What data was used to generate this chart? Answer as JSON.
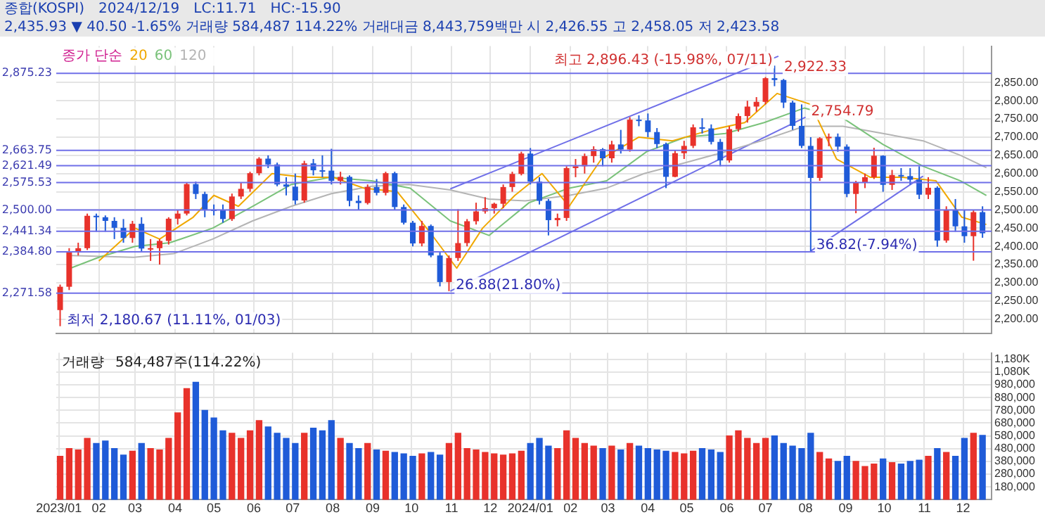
{
  "chart_data": [
    {
      "type": "candlestick",
      "title": "종합(KOSPI)",
      "subtitle": "2,435.93 ▼ 40.50 -1.65% 거래량 584,487 114.22% 거래대금 8,443,759백만 시 2,426.55 고 2,458.05 저 2,423.58",
      "annotations": [
        "2024/12/19",
        "LC:11.71",
        "HC:-15.90",
        {
          "text": "최고 2,896.43 (-15.98%, 07/11)",
          "x": "2024-07-11",
          "y": 2896.43
        },
        {
          "text": "최저 2,180.67 (11.11%, 01/03)",
          "x": "2023-01-03",
          "y": 2180.67
        },
        {
          "text": "26.88(21.80%)",
          "x": "2023-10-31",
          "y": 2277
        },
        {
          "text": "36.82(-7.94%)",
          "x": "2024-08-05",
          "y": 2386.96
        },
        {
          "text": "2,754.79",
          "x": "2024-08-01",
          "y": 2754.79
        },
        {
          "text": "2,922.33",
          "x": "2024-07-11",
          "y": 2922.33
        }
      ],
      "x": [
        "2023-01-02",
        "2023-01-09",
        "2023-01-16",
        "2023-01-23",
        "2023-01-30",
        "2023-02-06",
        "2023-02-13",
        "2023-02-20",
        "2023-02-27",
        "2023-03-06",
        "2023-03-13",
        "2023-03-20",
        "2023-03-27",
        "2023-04-03",
        "2023-04-10",
        "2023-04-17",
        "2023-04-24",
        "2023-05-01",
        "2023-05-08",
        "2023-05-15",
        "2023-05-22",
        "2023-05-29",
        "2023-06-05",
        "2023-06-12",
        "2023-06-19",
        "2023-06-26",
        "2023-07-03",
        "2023-07-10",
        "2023-07-17",
        "2023-07-24",
        "2023-07-31",
        "2023-08-07",
        "2023-08-14",
        "2023-08-21",
        "2023-08-28",
        "2023-09-04",
        "2023-09-11",
        "2023-09-18",
        "2023-09-25",
        "2023-10-02",
        "2023-10-09",
        "2023-10-16",
        "2023-10-23",
        "2023-10-30",
        "2023-11-06",
        "2023-11-13",
        "2023-11-20",
        "2023-11-27",
        "2023-12-04",
        "2023-12-11",
        "2023-12-18",
        "2023-12-25",
        "2024-01-01",
        "2024-01-08",
        "2024-01-15",
        "2024-01-22",
        "2024-01-29",
        "2024-02-05",
        "2024-02-12",
        "2024-02-19",
        "2024-02-26",
        "2024-03-04",
        "2024-03-11",
        "2024-03-18",
        "2024-03-25",
        "2024-04-01",
        "2024-04-08",
        "2024-04-15",
        "2024-04-22",
        "2024-04-29",
        "2024-05-06",
        "2024-05-13",
        "2024-05-20",
        "2024-05-27",
        "2024-06-03",
        "2024-06-10",
        "2024-06-17",
        "2024-06-24",
        "2024-07-01",
        "2024-07-08",
        "2024-07-15",
        "2024-07-22",
        "2024-07-29",
        "2024-08-05",
        "2024-08-12",
        "2024-08-19",
        "2024-08-26",
        "2024-09-02",
        "2024-09-09",
        "2024-09-16",
        "2024-09-23",
        "2024-09-30",
        "2024-10-07",
        "2024-10-14",
        "2024-10-21",
        "2024-10-28",
        "2024-11-04",
        "2024-11-11",
        "2024-11-18",
        "2024-11-25",
        "2024-12-02",
        "2024-12-09",
        "2024-12-16"
      ],
      "ohlc": [
        [
          2225,
          2295,
          2180.67,
          2289
        ],
        [
          2289,
          2395,
          2280,
          2386
        ],
        [
          2386,
          2410,
          2375,
          2395
        ],
        [
          2395,
          2490,
          2390,
          2484
        ],
        [
          2484,
          2490,
          2440,
          2480
        ],
        [
          2480,
          2485,
          2440,
          2470
        ],
        [
          2470,
          2480,
          2420,
          2451
        ],
        [
          2451,
          2475,
          2410,
          2423
        ],
        [
          2423,
          2470,
          2410,
          2462
        ],
        [
          2462,
          2480,
          2385,
          2394
        ],
        [
          2394,
          2420,
          2360,
          2395
        ],
        [
          2395,
          2420,
          2350,
          2415
        ],
        [
          2415,
          2480,
          2405,
          2476
        ],
        [
          2476,
          2500,
          2460,
          2490
        ],
        [
          2490,
          2575,
          2485,
          2571
        ],
        [
          2571,
          2578,
          2530,
          2544
        ],
        [
          2544,
          2550,
          2480,
          2501
        ],
        [
          2501,
          2515,
          2485,
          2500
        ],
        [
          2500,
          2515,
          2465,
          2475
        ],
        [
          2475,
          2545,
          2470,
          2537
        ],
        [
          2537,
          2575,
          2530,
          2558
        ],
        [
          2558,
          2605,
          2550,
          2601
        ],
        [
          2601,
          2645,
          2595,
          2641
        ],
        [
          2641,
          2650,
          2615,
          2625
        ],
        [
          2625,
          2630,
          2565,
          2570
        ],
        [
          2570,
          2590,
          2540,
          2564
        ],
        [
          2564,
          2600,
          2515,
          2526
        ],
        [
          2526,
          2635,
          2520,
          2628
        ],
        [
          2628,
          2640,
          2595,
          2609
        ],
        [
          2609,
          2650,
          2590,
          2608
        ],
        [
          2608,
          2668,
          2570,
          2580
        ],
        [
          2580,
          2605,
          2570,
          2591
        ],
        [
          2591,
          2595,
          2510,
          2525
        ],
        [
          2525,
          2540,
          2500,
          2519
        ],
        [
          2519,
          2570,
          2515,
          2563
        ],
        [
          2563,
          2585,
          2540,
          2547
        ],
        [
          2547,
          2605,
          2540,
          2601
        ],
        [
          2601,
          2605,
          2500,
          2508
        ],
        [
          2508,
          2515,
          2460,
          2465
        ],
        [
          2465,
          2470,
          2400,
          2408
        ],
        [
          2408,
          2470,
          2400,
          2456
        ],
        [
          2456,
          2460,
          2370,
          2375
        ],
        [
          2375,
          2385,
          2290,
          2302
        ],
        [
          2302,
          2375,
          2277,
          2368
        ],
        [
          2368,
          2502,
          2360,
          2409
        ],
        [
          2409,
          2475,
          2400,
          2469
        ],
        [
          2469,
          2520,
          2460,
          2496
        ],
        [
          2496,
          2535,
          2490,
          2505
        ],
        [
          2505,
          2520,
          2490,
          2517
        ],
        [
          2517,
          2570,
          2505,
          2563
        ],
        [
          2563,
          2605,
          2550,
          2599
        ],
        [
          2599,
          2660,
          2595,
          2655
        ],
        [
          2655,
          2670,
          2570,
          2578
        ],
        [
          2578,
          2590,
          2515,
          2525
        ],
        [
          2525,
          2530,
          2430,
          2472
        ],
        [
          2472,
          2490,
          2455,
          2478
        ],
        [
          2478,
          2620,
          2470,
          2615
        ],
        [
          2615,
          2640,
          2590,
          2620
        ],
        [
          2620,
          2655,
          2600,
          2648
        ],
        [
          2648,
          2675,
          2630,
          2667
        ],
        [
          2667,
          2670,
          2620,
          2642
        ],
        [
          2642,
          2690,
          2630,
          2680
        ],
        [
          2680,
          2720,
          2655,
          2666
        ],
        [
          2666,
          2755,
          2660,
          2748
        ],
        [
          2748,
          2760,
          2730,
          2746
        ],
        [
          2746,
          2765,
          2700,
          2714
        ],
        [
          2714,
          2725,
          2670,
          2681
        ],
        [
          2681,
          2685,
          2560,
          2591
        ],
        [
          2591,
          2665,
          2590,
          2656
        ],
        [
          2656,
          2690,
          2640,
          2676
        ],
        [
          2676,
          2735,
          2670,
          2727
        ],
        [
          2727,
          2752,
          2710,
          2724
        ],
        [
          2724,
          2735,
          2680,
          2687
        ],
        [
          2687,
          2695,
          2620,
          2636
        ],
        [
          2636,
          2730,
          2630,
          2722
        ],
        [
          2722,
          2765,
          2715,
          2758
        ],
        [
          2758,
          2800,
          2740,
          2784
        ],
        [
          2784,
          2810,
          2770,
          2797
        ],
        [
          2797,
          2865,
          2790,
          2862
        ],
        [
          2862,
          2896.43,
          2840,
          2857
        ],
        [
          2857,
          2860,
          2780,
          2795
        ],
        [
          2795,
          2800,
          2720,
          2731
        ],
        [
          2731,
          2790,
          2670,
          2676
        ],
        [
          2676,
          2700,
          2386.96,
          2588
        ],
        [
          2588,
          2700,
          2580,
          2697
        ],
        [
          2697,
          2710,
          2675,
          2701
        ],
        [
          2701,
          2710,
          2660,
          2674
        ],
        [
          2674,
          2680,
          2535,
          2544
        ],
        [
          2544,
          2580,
          2491,
          2575
        ],
        [
          2575,
          2600,
          2560,
          2590
        ],
        [
          2590,
          2671,
          2585,
          2649
        ],
        [
          2649,
          2650,
          2550,
          2569
        ],
        [
          2569,
          2610,
          2555,
          2596
        ],
        [
          2596,
          2615,
          2580,
          2593
        ],
        [
          2593,
          2615,
          2570,
          2583
        ],
        [
          2583,
          2620,
          2530,
          2542
        ],
        [
          2542,
          2590,
          2530,
          2561
        ],
        [
          2561,
          2565,
          2399,
          2416
        ],
        [
          2416,
          2510,
          2410,
          2501
        ],
        [
          2501,
          2530,
          2440,
          2455
        ],
        [
          2455,
          2500,
          2410,
          2428
        ],
        [
          2428,
          2500,
          2360.58,
          2494
        ],
        [
          2494,
          2510,
          2423.58,
          2435.93
        ]
      ],
      "colors": [
        "#e8322b",
        "#e8322b",
        "#e8322b",
        "#e8322b",
        "#1f5bd8",
        "#1f5bd8",
        "#1f5bd8",
        "#1f5bd8",
        "#e8322b",
        "#1f5bd8",
        "#e8322b",
        "#e8322b",
        "#e8322b",
        "#e8322b",
        "#e8322b",
        "#1f5bd8",
        "#1f5bd8",
        "#1f5bd8",
        "#1f5bd8",
        "#e8322b",
        "#e8322b",
        "#e8322b",
        "#e8322b",
        "#1f5bd8",
        "#1f5bd8",
        "#1f5bd8",
        "#1f5bd8",
        "#e8322b",
        "#1f5bd8",
        "#1f5bd8",
        "#1f5bd8",
        "#e8322b",
        "#1f5bd8",
        "#1f5bd8",
        "#e8322b",
        "#1f5bd8",
        "#e8322b",
        "#1f5bd8",
        "#1f5bd8",
        "#1f5bd8",
        "#e8322b",
        "#1f5bd8",
        "#1f5bd8",
        "#e8322b",
        "#e8322b",
        "#e8322b",
        "#e8322b",
        "#e8322b",
        "#e8322b",
        "#e8322b",
        "#e8322b",
        "#e8322b",
        "#1f5bd8",
        "#1f5bd8",
        "#1f5bd8",
        "#e8322b",
        "#e8322b",
        "#e8322b",
        "#e8322b",
        "#e8322b",
        "#1f5bd8",
        "#e8322b",
        "#1f5bd8",
        "#e8322b",
        "#1f5bd8",
        "#1f5bd8",
        "#1f5bd8",
        "#1f5bd8",
        "#e8322b",
        "#e8322b",
        "#e8322b",
        "#1f5bd8",
        "#1f5bd8",
        "#1f5bd8",
        "#e8322b",
        "#e8322b",
        "#e8322b",
        "#e8322b",
        "#e8322b",
        "#1f5bd8",
        "#1f5bd8",
        "#1f5bd8",
        "#1f5bd8",
        "#1f5bd8",
        "#e8322b",
        "#e8322b",
        "#1f5bd8",
        "#1f5bd8",
        "#e8322b",
        "#e8322b",
        "#e8322b",
        "#1f5bd8",
        "#e8322b",
        "#1f5bd8",
        "#1f5bd8",
        "#1f5bd8",
        "#e8322b",
        "#1f5bd8",
        "#e8322b",
        "#1f5bd8",
        "#1f5bd8",
        "#e8322b",
        "#1f5bd8"
      ],
      "series": [
        {
          "type": "line",
          "name": "20",
          "color": "#f0a800",
          "x": [
            "2023-02-01",
            "2023-03-01",
            "2023-03-20",
            "2023-04-15",
            "2023-05-01",
            "2023-05-20",
            "2023-06-15",
            "2023-07-10",
            "2023-08-01",
            "2023-08-25",
            "2023-09-20",
            "2023-10-15",
            "2023-11-05",
            "2023-11-25",
            "2023-12-20",
            "2024-01-10",
            "2024-01-31",
            "2024-02-25",
            "2024-03-25",
            "2024-04-20",
            "2024-05-20",
            "2024-06-15",
            "2024-07-10",
            "2024-08-05",
            "2024-08-25",
            "2024-09-20",
            "2024-10-15",
            "2024-11-10",
            "2024-11-30",
            "2024-12-19"
          ],
          "values": [
            2360,
            2450,
            2420,
            2480,
            2540,
            2510,
            2600,
            2590,
            2590,
            2560,
            2550,
            2440,
            2340,
            2450,
            2540,
            2600,
            2510,
            2640,
            2700,
            2690,
            2720,
            2740,
            2820,
            2790,
            2640,
            2590,
            2590,
            2580,
            2480,
            2460
          ]
        },
        {
          "type": "line",
          "name": "60",
          "color": "#7ac27a",
          "x": [
            "2023-01-10",
            "2023-02-01",
            "2023-03-01",
            "2023-03-28",
            "2023-04-30",
            "2023-05-31",
            "2023-06-30",
            "2023-07-31",
            "2023-08-31",
            "2023-09-30",
            "2023-10-31",
            "2023-11-30",
            "2023-12-31",
            "2024-01-31",
            "2024-02-29",
            "2024-03-31",
            "2024-04-30",
            "2024-05-31",
            "2024-06-30",
            "2024-07-31",
            "2024-08-31",
            "2024-09-30",
            "2024-10-31",
            "2024-11-29",
            "2024-12-19"
          ],
          "values": [
            2340,
            2370,
            2400,
            2410,
            2450,
            2510,
            2570,
            2590,
            2580,
            2560,
            2470,
            2430,
            2520,
            2560,
            2580,
            2660,
            2700,
            2710,
            2740,
            2780,
            2750,
            2680,
            2620,
            2580,
            2540
          ]
        },
        {
          "type": "line",
          "name": "120",
          "color": "#b4b4b4",
          "x": [
            "2023-01-10",
            "2023-02-28",
            "2023-03-31",
            "2023-04-30",
            "2023-05-31",
            "2023-06-30",
            "2023-07-31",
            "2023-08-31",
            "2023-09-29",
            "2023-10-31",
            "2023-11-30",
            "2023-12-28",
            "2024-01-31",
            "2024-02-29",
            "2024-03-29",
            "2024-04-30",
            "2024-05-31",
            "2024-06-28",
            "2024-07-31",
            "2024-08-30",
            "2024-09-30",
            "2024-10-31",
            "2024-11-29",
            "2024-12-19"
          ],
          "values": [
            2375,
            2370,
            2380,
            2420,
            2470,
            2510,
            2545,
            2565,
            2570,
            2555,
            2530,
            2525,
            2540,
            2560,
            2600,
            2630,
            2660,
            2690,
            2730,
            2730,
            2710,
            2690,
            2650,
            2616
          ]
        },
        {
          "type": "line",
          "color": "#6f6fe8",
          "x": [
            "2023-10-31",
            "2024-07-11"
          ],
          "values": [
            2558,
            2922.33
          ]
        },
        {
          "type": "line",
          "color": "#6f6fe8",
          "x": [
            "2023-10-31",
            "2024-08-01"
          ],
          "values": [
            2277,
            2754.79
          ]
        },
        {
          "type": "line",
          "color": "#6f6fe8",
          "x": [
            "2024-08-05",
            "2024-10-31"
          ],
          "values": [
            2386.96,
            2593
          ]
        }
      ],
      "legend": "top left",
      "legend_title": "종가 단순",
      "ref_lines": [
        {
          "axis": "y",
          "value": 2875.23,
          "label": "2,875.23",
          "color": "#6f6fe8"
        },
        {
          "axis": "y",
          "value": 2663.75,
          "label": "2,663.75",
          "color": "#6f6fe8"
        },
        {
          "axis": "y",
          "value": 2621.49,
          "label": "2,621.49",
          "color": "#6f6fe8"
        },
        {
          "axis": "y",
          "value": 2575.53,
          "label": "2,575.53",
          "color": "#6f6fe8"
        },
        {
          "axis": "y",
          "value": 2500,
          "label": "2,500.00",
          "color": "#6f6fe8"
        },
        {
          "axis": "y",
          "value": 2441.34,
          "label": "2,441.34",
          "color": "#6f6fe8"
        },
        {
          "axis": "y",
          "value": 2384.8,
          "label": "2,384.80",
          "color": "#6f6fe8"
        },
        {
          "axis": "y",
          "value": 2271.58,
          "label": "2,271.58",
          "color": "#6f6fe8"
        }
      ],
      "xlim": [
        "2022-12-30",
        "2024-12-23"
      ],
      "xticks": [
        {
          "value": "2023-02-01",
          "label": null
        },
        {
          "value": "2023-03-01",
          "label": null
        },
        {
          "value": "2023-04-01",
          "label": null
        },
        {
          "value": "2023-05-01",
          "label": null
        },
        {
          "value": "2023-06-01",
          "label": null
        },
        {
          "value": "2023-07-01",
          "label": null
        },
        {
          "value": "2023-08-01",
          "label": null
        },
        {
          "value": "2023-09-01",
          "label": null
        },
        {
          "value": "2023-10-01",
          "label": null
        },
        {
          "value": "2023-11-01",
          "label": null
        },
        {
          "value": "2023-12-01",
          "label": null
        },
        {
          "value": "2024-01-01",
          "label": null
        },
        {
          "value": "2024-02-01",
          "label": null
        },
        {
          "value": "2024-03-01",
          "label": null
        },
        {
          "value": "2024-04-01",
          "label": null
        },
        {
          "value": "2024-05-01",
          "label": null
        },
        {
          "value": "2024-06-01",
          "label": null
        },
        {
          "value": "2024-07-01",
          "label": null
        },
        {
          "value": "2024-08-01",
          "label": null
        },
        {
          "value": "2024-09-01",
          "label": null
        },
        {
          "value": "2024-10-01",
          "label": null
        },
        {
          "value": "2024-11-01",
          "label": null
        },
        {
          "value": "2024-12-01",
          "label": null
        }
      ],
      "ylim": [
        2160,
        2950
      ],
      "yticks": [
        {
          "value": 2850,
          "label": "2,850.00"
        },
        {
          "value": 2800,
          "label": "2,800.00"
        },
        {
          "value": 2750,
          "label": "2,750.00"
        },
        {
          "value": 2700,
          "label": "2,700.00"
        },
        {
          "value": 2650,
          "label": "2,650.00"
        },
        {
          "value": 2600,
          "label": "2,600.00"
        },
        {
          "value": 2550,
          "label": "2,550.00"
        },
        {
          "value": 2500,
          "label": "2,500.00"
        },
        {
          "value": 2450,
          "label": "2,450.00"
        },
        {
          "value": 2400,
          "label": "2,400.00"
        },
        {
          "value": 2350,
          "label": "2,350.00"
        },
        {
          "value": 2300,
          "label": "2,300.00"
        },
        {
          "value": 2250,
          "label": "2,250.00"
        },
        {
          "value": 2200,
          "label": "2,200.00"
        }
      ],
      "grid": true,
      "tick_labels": "y"
    },
    {
      "type": "bar",
      "annotations": [
        "거래량",
        "584,487주(114.22%)"
      ],
      "x": [
        "2023-01-02",
        "2023-01-09",
        "2023-01-16",
        "2023-01-23",
        "2023-01-30",
        "2023-02-06",
        "2023-02-13",
        "2023-02-20",
        "2023-02-27",
        "2023-03-06",
        "2023-03-13",
        "2023-03-20",
        "2023-03-27",
        "2023-04-03",
        "2023-04-10",
        "2023-04-17",
        "2023-04-24",
        "2023-05-01",
        "2023-05-08",
        "2023-05-15",
        "2023-05-22",
        "2023-05-29",
        "2023-06-05",
        "2023-06-12",
        "2023-06-19",
        "2023-06-26",
        "2023-07-03",
        "2023-07-10",
        "2023-07-17",
        "2023-07-24",
        "2023-07-31",
        "2023-08-07",
        "2023-08-14",
        "2023-08-21",
        "2023-08-28",
        "2023-09-04",
        "2023-09-11",
        "2023-09-18",
        "2023-09-25",
        "2023-10-02",
        "2023-10-09",
        "2023-10-16",
        "2023-10-23",
        "2023-10-30",
        "2023-11-06",
        "2023-11-13",
        "2023-11-20",
        "2023-11-27",
        "2023-12-04",
        "2023-12-11",
        "2023-12-18",
        "2023-12-25",
        "2024-01-01",
        "2024-01-08",
        "2024-01-15",
        "2024-01-22",
        "2024-01-29",
        "2024-02-05",
        "2024-02-12",
        "2024-02-19",
        "2024-02-26",
        "2024-03-04",
        "2024-03-11",
        "2024-03-18",
        "2024-03-25",
        "2024-04-01",
        "2024-04-08",
        "2024-04-15",
        "2024-04-22",
        "2024-04-29",
        "2024-05-06",
        "2024-05-13",
        "2024-05-20",
        "2024-05-27",
        "2024-06-03",
        "2024-06-10",
        "2024-06-17",
        "2024-06-24",
        "2024-07-01",
        "2024-07-08",
        "2024-07-15",
        "2024-07-22",
        "2024-07-29",
        "2024-08-05",
        "2024-08-12",
        "2024-08-19",
        "2024-08-26",
        "2024-09-02",
        "2024-09-09",
        "2024-09-16",
        "2024-09-23",
        "2024-09-30",
        "2024-10-07",
        "2024-10-14",
        "2024-10-21",
        "2024-10-28",
        "2024-11-04",
        "2024-11-11",
        "2024-11-18",
        "2024-11-25",
        "2024-12-02",
        "2024-12-09",
        "2024-12-16"
      ],
      "values": [
        420000,
        480000,
        470000,
        560000,
        520000,
        540000,
        480000,
        430000,
        460000,
        520000,
        480000,
        470000,
        560000,
        760000,
        950000,
        1000000,
        780000,
        720000,
        620000,
        600000,
        560000,
        620000,
        700000,
        650000,
        600000,
        560000,
        520000,
        600000,
        640000,
        620000,
        700000,
        560000,
        520000,
        480000,
        520000,
        470000,
        460000,
        450000,
        440000,
        420000,
        440000,
        450000,
        430000,
        520000,
        600000,
        480000,
        470000,
        450000,
        440000,
        430000,
        440000,
        460000,
        520000,
        560000,
        500000,
        480000,
        620000,
        560000,
        520000,
        500000,
        480000,
        500000,
        470000,
        520000,
        500000,
        480000,
        470000,
        460000,
        450000,
        440000,
        460000,
        480000,
        470000,
        450000,
        580000,
        620000,
        560000,
        520000,
        560000,
        580000,
        520000,
        500000,
        480000,
        600000,
        450000,
        400000,
        380000,
        420000,
        380000,
        340000,
        360000,
        400000,
        370000,
        360000,
        380000,
        390000,
        420000,
        480000,
        450000,
        420000,
        560000,
        600000,
        584487
      ],
      "colors": [
        "#e8322b",
        "#e8322b",
        "#e8322b",
        "#e8322b",
        "#1f5bd8",
        "#1f5bd8",
        "#1f5bd8",
        "#1f5bd8",
        "#e8322b",
        "#1f5bd8",
        "#e8322b",
        "#e8322b",
        "#e8322b",
        "#e8322b",
        "#e8322b",
        "#1f5bd8",
        "#1f5bd8",
        "#1f5bd8",
        "#1f5bd8",
        "#e8322b",
        "#e8322b",
        "#e8322b",
        "#e8322b",
        "#1f5bd8",
        "#1f5bd8",
        "#1f5bd8",
        "#1f5bd8",
        "#e8322b",
        "#1f5bd8",
        "#1f5bd8",
        "#1f5bd8",
        "#e8322b",
        "#1f5bd8",
        "#1f5bd8",
        "#e8322b",
        "#1f5bd8",
        "#e8322b",
        "#1f5bd8",
        "#1f5bd8",
        "#1f5bd8",
        "#e8322b",
        "#1f5bd8",
        "#1f5bd8",
        "#e8322b",
        "#e8322b",
        "#e8322b",
        "#e8322b",
        "#e8322b",
        "#e8322b",
        "#e8322b",
        "#e8322b",
        "#e8322b",
        "#1f5bd8",
        "#1f5bd8",
        "#1f5bd8",
        "#e8322b",
        "#e8322b",
        "#e8322b",
        "#e8322b",
        "#e8322b",
        "#1f5bd8",
        "#e8322b",
        "#1f5bd8",
        "#e8322b",
        "#1f5bd8",
        "#1f5bd8",
        "#1f5bd8",
        "#1f5bd8",
        "#e8322b",
        "#e8322b",
        "#e8322b",
        "#1f5bd8",
        "#1f5bd8",
        "#1f5bd8",
        "#e8322b",
        "#e8322b",
        "#e8322b",
        "#e8322b",
        "#e8322b",
        "#1f5bd8",
        "#1f5bd8",
        "#1f5bd8",
        "#1f5bd8",
        "#1f5bd8",
        "#e8322b",
        "#e8322b",
        "#1f5bd8",
        "#1f5bd8",
        "#e8322b",
        "#e8322b",
        "#e8322b",
        "#1f5bd8",
        "#e8322b",
        "#1f5bd8",
        "#1f5bd8",
        "#1f5bd8",
        "#e8322b",
        "#1f5bd8",
        "#e8322b",
        "#1f5bd8",
        "#1f5bd8",
        "#e8322b",
        "#1f5bd8"
      ],
      "xlim": [
        "2022-12-30",
        "2024-12-23"
      ],
      "xticks": [
        {
          "value": "2023-01-01",
          "label": "2023/01"
        },
        {
          "value": "2023-02-01",
          "label": "02"
        },
        {
          "value": "2023-03-01",
          "label": "03"
        },
        {
          "value": "2023-04-01",
          "label": "04"
        },
        {
          "value": "2023-05-01",
          "label": "05"
        },
        {
          "value": "2023-06-01",
          "label": "06"
        },
        {
          "value": "2023-07-01",
          "label": "07"
        },
        {
          "value": "2023-08-01",
          "label": "08"
        },
        {
          "value": "2023-09-01",
          "label": "09"
        },
        {
          "value": "2023-10-01",
          "label": "10"
        },
        {
          "value": "2023-11-01",
          "label": "11"
        },
        {
          "value": "2023-12-01",
          "label": "12"
        },
        {
          "value": "2024-01-01",
          "label": "2024/01"
        },
        {
          "value": "2024-02-01",
          "label": "02"
        },
        {
          "value": "2024-03-01",
          "label": "03"
        },
        {
          "value": "2024-04-01",
          "label": "04"
        },
        {
          "value": "2024-05-01",
          "label": "05"
        },
        {
          "value": "2024-06-01",
          "label": "06"
        },
        {
          "value": "2024-07-01",
          "label": "07"
        },
        {
          "value": "2024-08-01",
          "label": "08"
        },
        {
          "value": "2024-09-01",
          "label": "09"
        },
        {
          "value": "2024-10-01",
          "label": "10"
        },
        {
          "value": "2024-11-01",
          "label": "11"
        },
        {
          "value": "2024-12-01",
          "label": "12"
        }
      ],
      "ylim": [
        80000,
        1230000
      ],
      "yticks": [
        {
          "value": 1180000,
          "label": "1,180K"
        },
        {
          "value": 1080000,
          "label": "1,080K"
        },
        {
          "value": 980000,
          "label": "980,000"
        },
        {
          "value": 880000,
          "label": "880,000"
        },
        {
          "value": 780000,
          "label": "780,000"
        },
        {
          "value": 680000,
          "label": "680,000"
        },
        {
          "value": 580000,
          "label": "580,000"
        },
        {
          "value": 480000,
          "label": "480,000"
        },
        {
          "value": 380000,
          "label": "380,000"
        },
        {
          "value": 280000,
          "label": "280,000"
        },
        {
          "value": 180000,
          "label": "180,000"
        }
      ],
      "grid": true
    }
  ]
}
